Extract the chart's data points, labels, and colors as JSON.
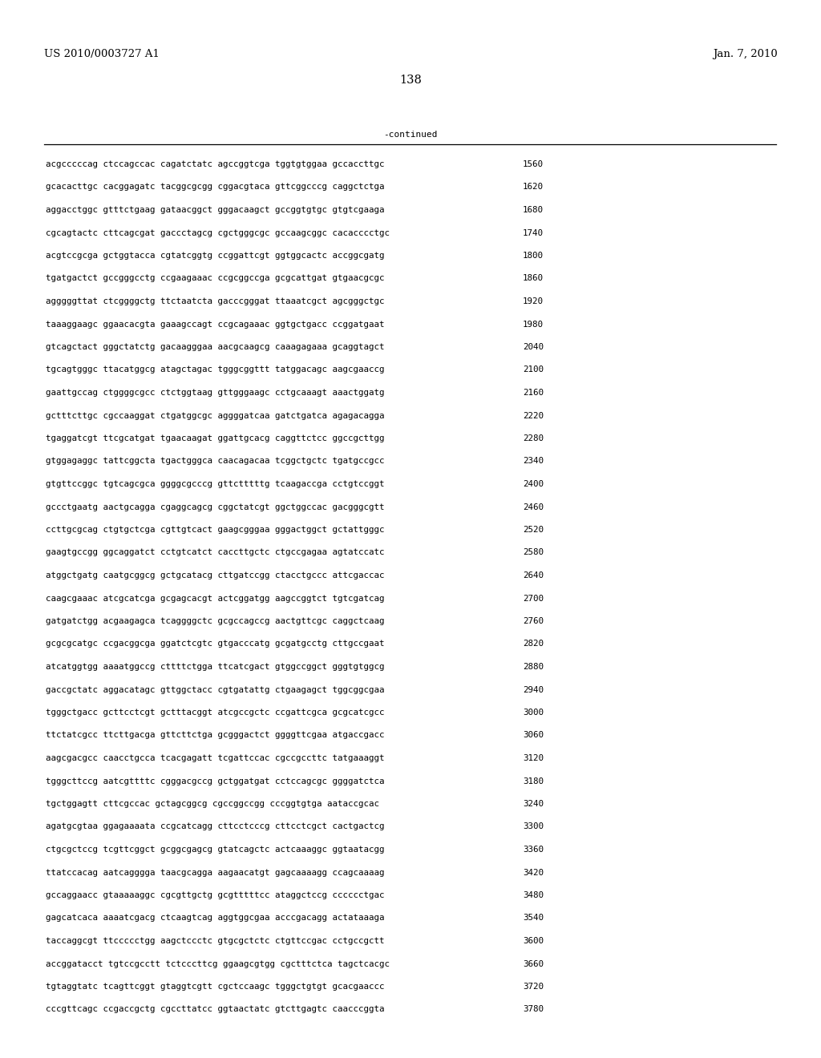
{
  "header_left": "US 2010/0003727 A1",
  "header_right": "Jan. 7, 2010",
  "page_number": "138",
  "continued_label": "-continued",
  "background_color": "#ffffff",
  "text_color": "#000000",
  "font_size_header": 9.5,
  "font_size_page": 10.5,
  "font_size_body": 7.8,
  "font_size_continued": 8.0,
  "sequence_lines": [
    [
      "acgcccccag ctccagccac cagatctatc agccggtcga tggtgtggaa gccaccttgc",
      "1560"
    ],
    [
      "gcacacttgc cacggagatc tacggcgcgg cggacgtaca gttcggcccg caggctctga",
      "1620"
    ],
    [
      "aggacctggc gtttctgaag gataacggct gggacaagct gccggtgtgc gtgtcgaaga",
      "1680"
    ],
    [
      "cgcagtactc cttcagcgat gaccctagcg cgctgggcgc gccaagcggc cacacccctgc",
      "1740"
    ],
    [
      "acgtccgcga gctggtacca cgtatcggtg ccggattcgt ggtggcactc accggcgatg",
      "1800"
    ],
    [
      "tgatgactct gccgggcctg ccgaagaaac ccgcggccga gcgcattgat gtgaacgcgc",
      "1860"
    ],
    [
      "agggggttat ctcggggctg ttctaatcta gacccgggat ttaaatcgct agcgggctgc",
      "1920"
    ],
    [
      "taaaggaagc ggaacacgta gaaagccagt ccgcagaaac ggtgctgacc ccggatgaat",
      "1980"
    ],
    [
      "gtcagctact gggctatctg gacaagggaa aacgcaagcg caaagagaaa gcaggtagct",
      "2040"
    ],
    [
      "tgcagtgggc ttacatggcg atagctagac tgggcggttt tatggacagc aagcgaaccg",
      "2100"
    ],
    [
      "gaattgccag ctggggcgcc ctctggtaag gttgggaagc cctgcaaagt aaactggatg",
      "2160"
    ],
    [
      "gctttcttgc cgccaaggat ctgatggcgc aggggatcaa gatctgatca agagacagga",
      "2220"
    ],
    [
      "tgaggatcgt ttcgcatgat tgaacaagat ggattgcacg caggttctcc ggccgcttgg",
      "2280"
    ],
    [
      "gtggagaggc tattcggcta tgactgggca caacagacaa tcggctgctc tgatgccgcc",
      "2340"
    ],
    [
      "gtgttccggc tgtcagcgca ggggcgcccg gttctttttg tcaagaccga cctgtccggt",
      "2400"
    ],
    [
      "gccctgaatg aactgcagga cgaggcagcg cggctatcgt ggctggccac gacgggcgtt",
      "2460"
    ],
    [
      "ccttgcgcag ctgtgctcga cgttgtcact gaagcgggaa gggactggct gctattgggc",
      "2520"
    ],
    [
      "gaagtgccgg ggcaggatct cctgtcatct caccttgctc ctgccgagaa agtatccatc",
      "2580"
    ],
    [
      "atggctgatg caatgcggcg gctgcatacg cttgatccgg ctacctgccc attcgaccac",
      "2640"
    ],
    [
      "caagcgaaac atcgcatcga gcgagcacgt actcggatgg aagccggtct tgtcgatcag",
      "2700"
    ],
    [
      "gatgatctgg acgaagagca tcaggggctc gcgccagccg aactgttcgc caggctcaag",
      "2760"
    ],
    [
      "gcgcgcatgc ccgacggcga ggatctcgtc gtgacccatg gcgatgcctg cttgccgaat",
      "2820"
    ],
    [
      "atcatggtgg aaaatggccg cttttctgga ttcatcgact gtggccggct gggtgtggcg",
      "2880"
    ],
    [
      "gaccgctatc aggacatagc gttggctacc cgtgatattg ctgaagagct tggcggcgaa",
      "2940"
    ],
    [
      "tgggctgacc gcttcctcgt gctttacggt atcgccgctc ccgattcgca gcgcatcgcc",
      "3000"
    ],
    [
      "ttctatcgcc ttcttgacga gttcttctga gcgggactct ggggttcgaa atgaccgacc",
      "3060"
    ],
    [
      "aagcgacgcc caacctgcca tcacgagatt tcgattccac cgccgccttc tatgaaaggt",
      "3120"
    ],
    [
      "tgggcttccg aatcgttttc cgggacgccg gctggatgat cctccagcgc ggggatctca",
      "3180"
    ],
    [
      "tgctggagtt cttcgccac gctagcggcg cgccggccgg cccggtgtga aataccgcac",
      "3240"
    ],
    [
      "agatgcgtaa ggagaaaata ccgcatcagg cttcctcccg cttcctcgct cactgactcg",
      "3300"
    ],
    [
      "ctgcgctccg tcgttcggct gcggcgagcg gtatcagctc actcaaaggc ggtaatacgg",
      "3360"
    ],
    [
      "ttatccacag aatcagggga taacgcagga aagaacatgt gagcaaaagg ccagcaaaag",
      "3420"
    ],
    [
      "gccaggaacc gtaaaaaggc cgcgttgctg gcgtttttcc ataggctccg cccccctgac",
      "3480"
    ],
    [
      "gagcatcaca aaaatcgacg ctcaagtcag aggtggcgaa acccgacagg actataaaga",
      "3540"
    ],
    [
      "taccaggcgt ttccccctgg aagctccctc gtgcgctctc ctgttccgac cctgccgctt",
      "3600"
    ],
    [
      "accggatacct tgtccgcctt tctcccttcg ggaagcgtgg cgctttctca tagctcacgc",
      "3660"
    ],
    [
      "tgtaggtatc tcagttcggt gtaggtcgtt cgctccaagc tgggctgtgt gcacgaaccc",
      "3720"
    ],
    [
      "cccgttcagc ccgaccgctg cgccttatcc ggtaactatc gtcttgagtc caacccggta",
      "3780"
    ]
  ]
}
